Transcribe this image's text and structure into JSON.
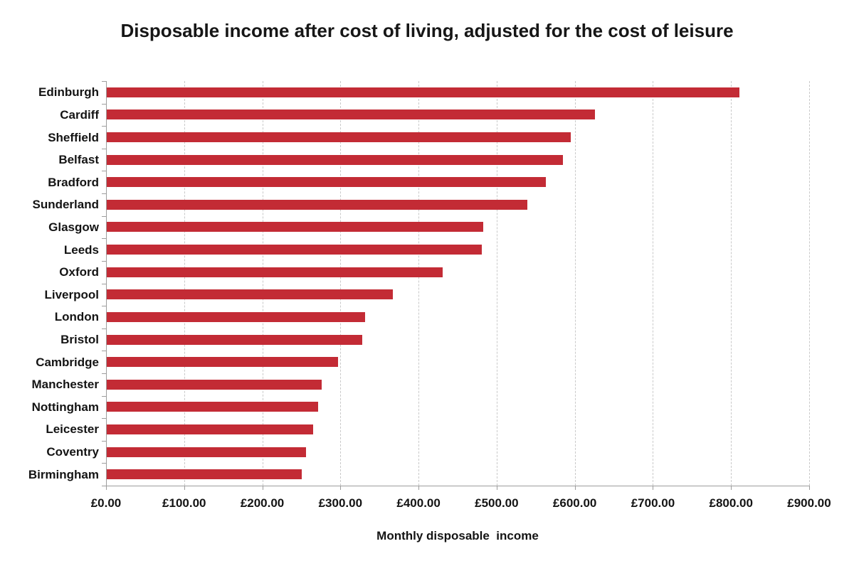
{
  "chart_data": {
    "type": "bar",
    "orientation": "horizontal",
    "title": "Disposable income after cost of living, adjusted for the cost of leisure",
    "xlabel": "Monthly disposable  income",
    "ylabel": "",
    "categories": [
      "Edinburgh",
      "Cardiff",
      "Sheffield",
      "Belfast",
      "Bradford",
      "Sunderland",
      "Glasgow",
      "Leeds",
      "Oxford",
      "Liverpool",
      "London",
      "Bristol",
      "Cambridge",
      "Manchester",
      "Nottingham",
      "Leicester",
      "Coventry",
      "Birmingham"
    ],
    "values": [
      810,
      625,
      594,
      584,
      562,
      538,
      482,
      480,
      430,
      366,
      331,
      327,
      296,
      275,
      271,
      264,
      255,
      250
    ],
    "xlim": [
      0,
      900
    ],
    "tick_values": [
      0,
      100,
      200,
      300,
      400,
      500,
      600,
      700,
      800,
      900
    ],
    "tick_labels": [
      "£0.00",
      "£100.00",
      "£200.00",
      "£300.00",
      "£400.00",
      "£500.00",
      "£600.00",
      "£700.00",
      "£800.00",
      "£900.00"
    ],
    "grid": "vertical-dashed",
    "legend": "none",
    "bar_color": "#c32b35",
    "axis_color": "#9d9d9d",
    "gridline_color": "#c9c9c9",
    "text_color": "#141414",
    "background_color": "#ffffff"
  }
}
